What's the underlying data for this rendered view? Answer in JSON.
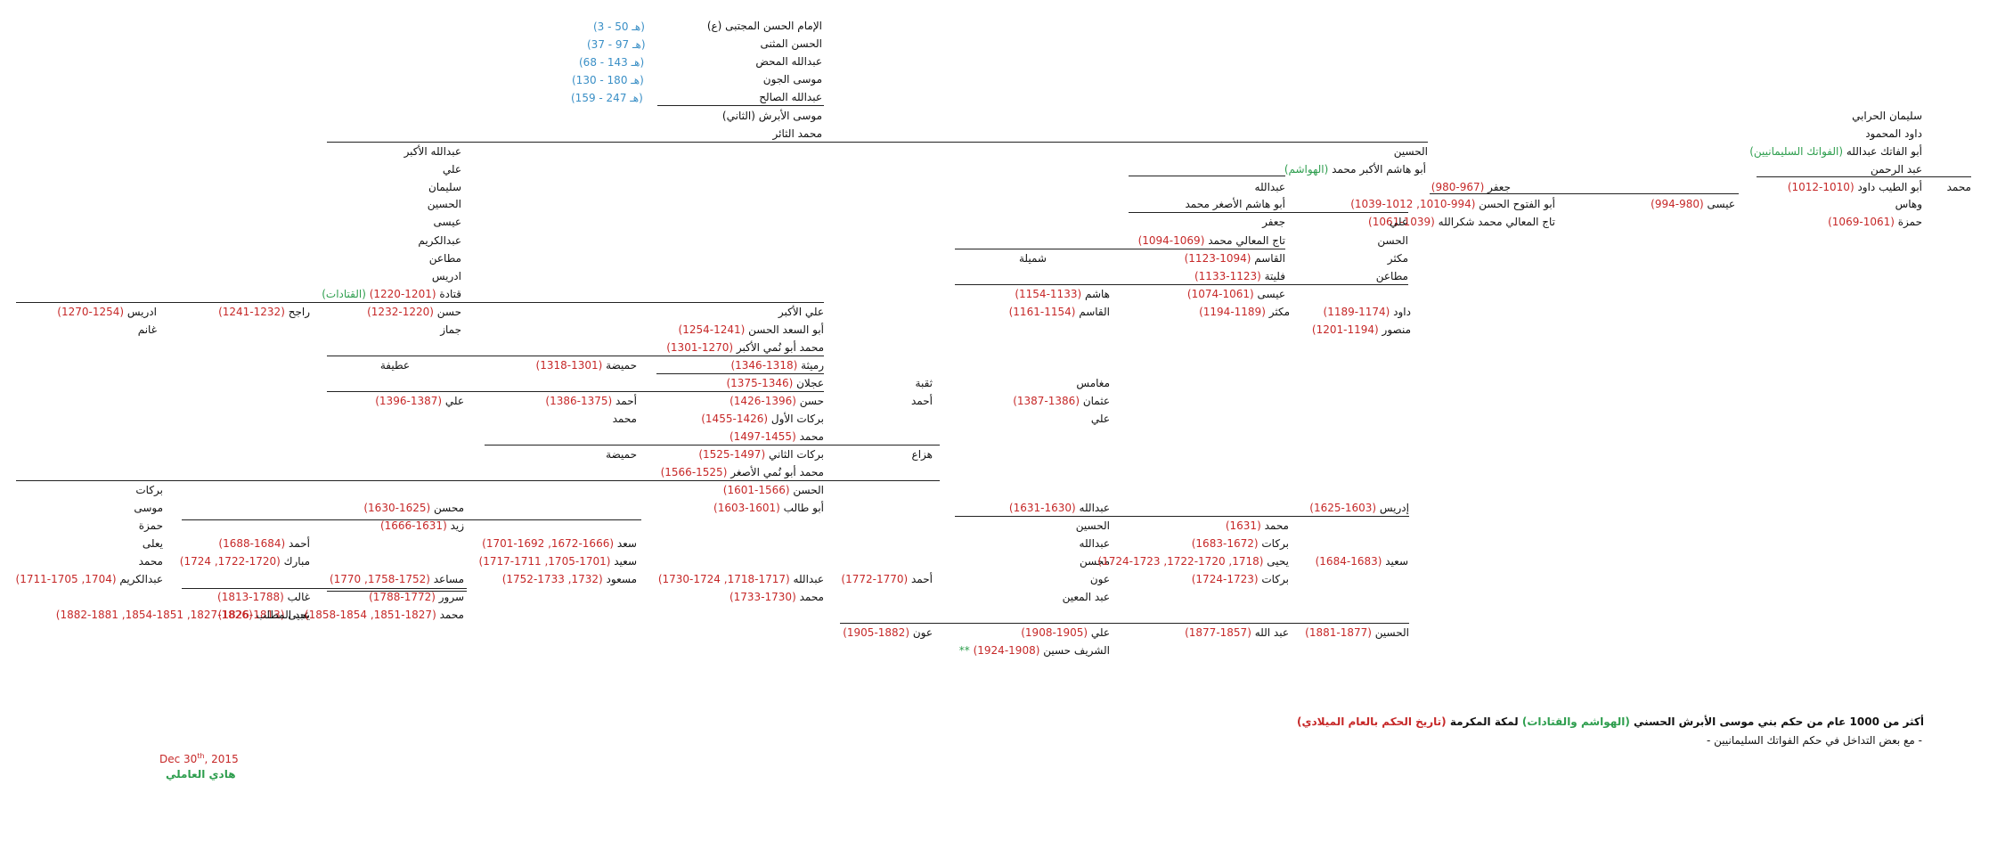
{
  "colors": {
    "name": "#111111",
    "years": "#c62828",
    "note": "#2e9e4e",
    "era": "#3a8fc6"
  },
  "lines": [
    [
      "الإمام الحسن المجتبى (ع)",
      [],
      []
    ],
    [
      "الحسن المثنى",
      [],
      []
    ],
    [
      "عبدالله المحض",
      [],
      []
    ],
    [
      "موسى الجون",
      [],
      []
    ],
    [
      "عبدالله الصالح",
      [],
      []
    ],
    [
      "موسى الأبرش (الثاني)",
      [],
      []
    ],
    [
      "محمد الثائر",
      [],
      []
    ],
    [
      "سليمان الحرابي",
      [],
      []
    ],
    [
      "داود المحمود",
      [],
      []
    ],
    [
      "أبو الفاتك عبدالله",
      [],
      [
        "(الفواتك السليمانيين)"
      ]
    ],
    [
      "عبد الرحمن",
      [],
      []
    ],
    [
      "محمد",
      [],
      []
    ],
    [
      "أبو الطيب داود",
      [
        "(1010-1012)"
      ],
      []
    ],
    [
      "وهاس",
      [],
      []
    ],
    [
      "حمزة",
      [
        "(1061-1069)"
      ],
      []
    ],
    [
      "عيسى",
      [
        "(980-994)"
      ],
      []
    ],
    [
      "جعفر",
      [
        "(967-980)"
      ],
      []
    ],
    [
      "أبو الفتوح الحسن",
      [
        "(994-1010, 1012-1039)"
      ],
      []
    ],
    [
      "تاج المعالي محمد شكرالله",
      [
        "(1039-1061)"
      ],
      []
    ],
    [
      "الحسين",
      [],
      []
    ],
    [
      "أبو هاشم الأكبر محمد",
      [],
      [
        "(الهواشم)"
      ]
    ],
    [
      "عبدالله",
      [],
      []
    ],
    [
      "أبو هاشم الأصغر محمد",
      [],
      []
    ],
    [
      "علي",
      [],
      []
    ],
    [
      "الحسن",
      [],
      []
    ],
    [
      "مكثر",
      [],
      []
    ],
    [
      "مطاعن",
      [],
      []
    ],
    [
      "جعفر",
      [],
      []
    ],
    [
      "تاج المعالي محمد",
      [
        "(1069-1094)"
      ],
      []
    ],
    [
      "القاسم",
      [
        "(1094-1123)"
      ],
      []
    ],
    [
      "فليتة",
      [
        "(1123-1133)"
      ],
      []
    ],
    [
      "عيسى",
      [
        "(1061-1074)"
      ],
      []
    ],
    [
      "شميلة",
      [],
      []
    ],
    [
      "هاشم",
      [
        "(1133-1154)"
      ],
      []
    ],
    [
      "القاسم",
      [
        "(1154-1161)"
      ],
      []
    ],
    [
      "داود",
      [
        "(1174-1189)"
      ],
      []
    ],
    [
      "منصور",
      [
        "(1194-1201)"
      ],
      []
    ],
    [
      "مكثر",
      [
        "(1189-1194)"
      ],
      []
    ],
    [
      "عبدالله الأكبر",
      [],
      []
    ],
    [
      "علي",
      [],
      []
    ],
    [
      "سليمان",
      [],
      []
    ],
    [
      "الحسين",
      [],
      []
    ],
    [
      "عيسى",
      [],
      []
    ],
    [
      "عبدالكريم",
      [],
      []
    ],
    [
      "مطاعن",
      [],
      []
    ],
    [
      "ادريس",
      [],
      []
    ],
    [
      "قتادة",
      [
        "(1201-1220)"
      ],
      [
        "(القتادات)"
      ]
    ],
    [
      "علي الأكبر",
      [],
      []
    ],
    [
      "حسن",
      [
        "(1220-1232)"
      ],
      []
    ],
    [
      "جماز",
      [],
      []
    ],
    [
      "راجح",
      [
        "(1232-1241)"
      ],
      []
    ],
    [
      "ادريس",
      [
        "(1254-1270)"
      ],
      []
    ],
    [
      "غانم",
      [],
      []
    ],
    [
      "أبو السعد الحسن",
      [
        "(1241-1254)"
      ],
      []
    ],
    [
      "محمد أبو نُمي الأكبر",
      [
        "(1270-1301)"
      ],
      []
    ],
    [
      "رميثة",
      [
        "(1318-1346)"
      ],
      []
    ],
    [
      "حميضة",
      [
        "(1301-1318)"
      ],
      []
    ],
    [
      "عطيفة",
      [],
      []
    ],
    [
      "مغامس",
      [],
      []
    ],
    [
      "ثقبة",
      [],
      []
    ],
    [
      "عجلان",
      [
        "(1346-1375)"
      ],
      []
    ],
    [
      "عثمان",
      [
        "(1386-1387)"
      ],
      []
    ],
    [
      "علي",
      [],
      []
    ],
    [
      "أحمد",
      [],
      []
    ],
    [
      "حسن",
      [
        "(1396-1426)"
      ],
      []
    ],
    [
      "أحمد",
      [
        "(1375-1386)"
      ],
      []
    ],
    [
      "علي",
      [
        "(1387-1396)"
      ],
      []
    ],
    [
      "بركات الأول",
      [
        "(1426-1455)"
      ],
      []
    ],
    [
      "محمد",
      [],
      []
    ],
    [
      "محمد",
      [
        "(1455-1497)"
      ],
      []
    ],
    [
      "هزاع",
      [],
      []
    ],
    [
      "بركات الثاني",
      [
        "(1497-1525)"
      ],
      []
    ],
    [
      "حميضة",
      [],
      []
    ],
    [
      "محمد أبو نُمي الأصغر",
      [
        "(1525-1566)"
      ],
      []
    ],
    [
      "الحسن",
      [
        "(1566-1601)"
      ],
      []
    ],
    [
      "بركات",
      [],
      []
    ],
    [
      "موسى",
      [],
      []
    ],
    [
      "حمزة",
      [],
      []
    ],
    [
      "يعلى",
      [],
      []
    ],
    [
      "محمد",
      [],
      []
    ],
    [
      "عبدالكريم",
      [
        "(1704, 1705-1711)"
      ],
      []
    ],
    [
      "إدريس",
      [
        "(1603-1625)"
      ],
      []
    ],
    [
      "عبدالله",
      [
        "(1630-1631)"
      ],
      []
    ],
    [
      "أبو طالب",
      [
        "(1601-1603)"
      ],
      []
    ],
    [
      "محسن",
      [
        "(1625-1630)"
      ],
      []
    ],
    [
      "زيد",
      [
        "(1631-1666)"
      ],
      []
    ],
    [
      "أحمد",
      [
        "(1684-1688)"
      ],
      []
    ],
    [
      "مبارك",
      [
        "(1720-1722, 1724)"
      ],
      []
    ],
    [
      "سعد",
      [
        "(1666-1672, 1692-1701)"
      ],
      []
    ],
    [
      "سعيد",
      [
        "(1701-1705, 1711-1717)"
      ],
      []
    ],
    [
      "الحسين",
      [],
      []
    ],
    [
      "محمد",
      [
        "(1631)"
      ],
      []
    ],
    [
      "عبدالله",
      [],
      []
    ],
    [
      "بركات",
      [
        "(1672-1683)"
      ],
      []
    ],
    [
      "محسن",
      [],
      []
    ],
    [
      "يحيى",
      [
        "(1718, 1720-1722, 1723-1724)"
      ],
      []
    ],
    [
      "سعيد",
      [
        "(1683-1684)"
      ],
      []
    ],
    [
      "عون",
      [],
      []
    ],
    [
      "بركات",
      [
        "(1723-1724)"
      ],
      []
    ],
    [
      "عبد المعين",
      [],
      []
    ],
    [
      "أحمد",
      [
        "(1770-1772)"
      ],
      []
    ],
    [
      "عبدالله",
      [
        "(1717-1718, 1724-1730)"
      ],
      []
    ],
    [
      "محمد",
      [
        "(1730-1733)"
      ],
      []
    ],
    [
      "مسعود",
      [
        "(1732, 1733-1752)"
      ],
      []
    ],
    [
      "مساعد",
      [
        "(1752-1758, 1770)"
      ],
      []
    ],
    [
      "غالب",
      [
        "(1788-1813)"
      ],
      []
    ],
    [
      "سرور",
      [
        "(1772-1788)"
      ],
      []
    ],
    [
      "يحيى",
      [
        "(1813-1826)"
      ],
      []
    ],
    [
      "عبد المطلب",
      [
        "(1826-1827, 1851-1854, 1881-1882)"
      ],
      []
    ],
    [
      "محمد",
      [
        "(1827-1851, 1854-1858)"
      ],
      []
    ],
    [
      "علي",
      [
        "(1905-1908)"
      ],
      []
    ],
    [
      "عون",
      [
        "(1882-1905)"
      ],
      []
    ],
    [
      "الحسين",
      [
        "(1877-1881)"
      ],
      []
    ],
    [
      "عبد الله",
      [
        "(1857-1877)"
      ],
      []
    ],
    [
      "الشريف حسين",
      [
        "(1908-1924)"
      ],
      [
        "**"
      ]
    ]
  ],
  "era": [
    "(3 - 50 هـ)",
    "(37 - 97 هـ)",
    "(68 - 143 هـ)",
    "(130 - 180 هـ)",
    "(159 - 247 هـ)"
  ],
  "legend": {
    "title_a": "أكثر من 1000 عام من حكم بني موسى الأبرش الحسني ",
    "title_b": "(الهواشم والقتادات)",
    "title_c": " لمكة المكرمة ",
    "title_d": "(تاريخ الحكم بالعام الميلادي)",
    "note": "- مع بعض التداخل في حكم الفواتك السليمانيين -"
  },
  "signature": {
    "date": "Dec 30",
    "date_sup": "th",
    "year": ", 2015",
    "author": "هادي العاملي"
  }
}
